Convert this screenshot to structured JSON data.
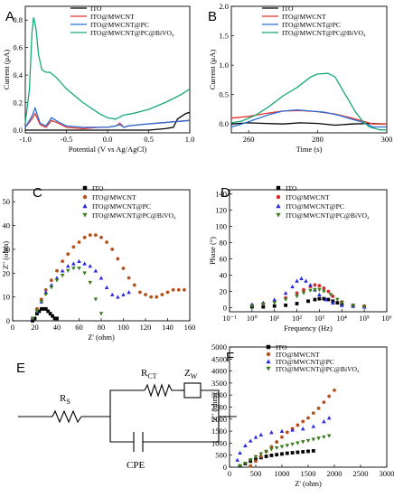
{
  "colors": {
    "ito": "#000000",
    "mwcnt": "#e8332b",
    "pc": "#2a6fd6",
    "bivo4": "#18a878",
    "nyq_ito": "#000000",
    "nyq_mwcnt": "#b5511c",
    "nyq_pc": "#2b2be0",
    "nyq_bivo4": "#3c7d1e"
  },
  "chart_data": [
    {
      "panel": "A",
      "type": "line",
      "xlabel": "Potential (V vs Ag/AgCl)",
      "ylabel": "Current (μA)",
      "xlim": [
        -1.0,
        1.0
      ],
      "ylim": [
        -0.02,
        0.9
      ],
      "xticks": [
        "-1.0",
        "-0.5",
        "0.0",
        "0.5",
        "1.0"
      ],
      "yticks": [
        "0.0",
        "0.2",
        "0.4",
        "0.6",
        "0.8"
      ],
      "series": [
        {
          "name": "ITO",
          "x": [
            -1.0,
            -0.9,
            -0.7,
            -0.5,
            -0.3,
            -0.1,
            0.1,
            0.3,
            0.5,
            0.7,
            0.8,
            0.85,
            0.9,
            0.95,
            1.0
          ],
          "y": [
            0.0,
            0.0,
            0.0,
            0.0,
            0.0,
            0.0,
            0.0,
            0.0,
            0.0,
            0.01,
            0.02,
            0.08,
            0.1,
            0.12,
            0.13
          ]
        },
        {
          "name": "ITO@MWCNT",
          "x": [
            -1.0,
            -0.92,
            -0.88,
            -0.82,
            -0.75,
            -0.68,
            -0.6,
            -0.5,
            -0.3,
            -0.1,
            0.0,
            0.1,
            0.15,
            0.2,
            0.25,
            0.4,
            0.6,
            0.8,
            1.0
          ],
          "y": [
            0.02,
            0.08,
            0.12,
            0.04,
            0.02,
            0.07,
            0.05,
            0.02,
            0.01,
            0.02,
            0.02,
            0.03,
            0.05,
            0.02,
            0.03,
            0.04,
            0.05,
            0.06,
            0.07
          ]
        },
        {
          "name": "ITO@MWCNT@PC",
          "x": [
            -1.0,
            -0.92,
            -0.88,
            -0.82,
            -0.75,
            -0.68,
            -0.6,
            -0.5,
            -0.3,
            -0.1,
            0.0,
            0.1,
            0.15,
            0.2,
            0.25,
            0.4,
            0.6,
            0.8,
            1.0
          ],
          "y": [
            0.02,
            0.1,
            0.16,
            0.05,
            0.03,
            0.09,
            0.06,
            0.03,
            0.02,
            0.02,
            0.02,
            0.03,
            0.04,
            0.02,
            0.03,
            0.04,
            0.05,
            0.06,
            0.07
          ]
        },
        {
          "name": "ITO@MWCNT@PC@BiVO₄",
          "x": [
            -1.0,
            -0.95,
            -0.92,
            -0.9,
            -0.87,
            -0.84,
            -0.8,
            -0.75,
            -0.7,
            -0.62,
            -0.5,
            -0.3,
            -0.1,
            0.0,
            0.1,
            0.2,
            0.3,
            0.5,
            0.7,
            0.9,
            1.0
          ],
          "y": [
            0.05,
            0.3,
            0.7,
            0.82,
            0.74,
            0.55,
            0.44,
            0.42,
            0.42,
            0.38,
            0.3,
            0.2,
            0.12,
            0.09,
            0.08,
            0.11,
            0.12,
            0.15,
            0.2,
            0.26,
            0.3
          ]
        }
      ]
    },
    {
      "panel": "B",
      "type": "line",
      "xlabel": "Time (s)",
      "ylabel": "Current (μA)",
      "xlim": [
        255,
        300
      ],
      "ylim": [
        -0.15,
        2.0
      ],
      "xticks": [
        "260",
        "280",
        "300"
      ],
      "yticks": [
        "0.0",
        "0.5",
        "1.0",
        "1.5",
        "2.0"
      ],
      "series": [
        {
          "name": "ITO",
          "x": [
            255,
            260,
            265,
            270,
            275,
            280,
            285,
            290,
            295,
            300
          ],
          "y": [
            0.0,
            0.02,
            0.01,
            0.0,
            0.02,
            0.01,
            -0.02,
            0.0,
            0.01,
            0.0
          ]
        },
        {
          "name": "ITO@MWCNT",
          "x": [
            255,
            260,
            265,
            270,
            275,
            280,
            285,
            290,
            293,
            296,
            300
          ],
          "y": [
            0.1,
            0.13,
            0.18,
            0.22,
            0.23,
            0.21,
            0.17,
            0.1,
            0.05,
            0.0,
            0.0
          ]
        },
        {
          "name": "ITO@MWCNT@PC",
          "x": [
            255,
            258,
            262,
            266,
            270,
            274,
            278,
            282,
            286,
            290,
            293,
            296,
            300
          ],
          "y": [
            -0.05,
            0.0,
            0.08,
            0.16,
            0.22,
            0.24,
            0.22,
            0.2,
            0.15,
            0.08,
            0.03,
            -0.05,
            -0.05
          ]
        },
        {
          "name": "ITO@MWCNT@PC@BiVO₄",
          "x": [
            255,
            258,
            262,
            266,
            270,
            274,
            278,
            280,
            283,
            285,
            287,
            289,
            291,
            293,
            295,
            298,
            300
          ],
          "y": [
            0.02,
            0.05,
            0.15,
            0.3,
            0.48,
            0.62,
            0.8,
            0.85,
            0.86,
            0.8,
            0.6,
            0.4,
            0.2,
            0.05,
            -0.05,
            -0.1,
            -0.1
          ]
        }
      ]
    },
    {
      "panel": "C",
      "type": "scatter",
      "xlabel": "Z' (ohm)",
      "ylabel": "Z'' (ohm)",
      "xlim": [
        0,
        160
      ],
      "ylim": [
        0,
        55
      ],
      "xticks": [
        "0",
        "20",
        "40",
        "60",
        "80",
        "100",
        "120",
        "140",
        "160"
      ],
      "yticks": [
        "0",
        "10",
        "20",
        "30",
        "40",
        "50"
      ],
      "series": [
        {
          "name": "ITO",
          "x": [
            18,
            20,
            22,
            24,
            26,
            28,
            30,
            32,
            34,
            36,
            38,
            40
          ],
          "y": [
            0,
            1,
            3,
            4,
            5,
            5,
            5,
            4,
            3,
            2,
            1,
            1
          ]
        },
        {
          "name": "ITO@MWCNT",
          "x": [
            18,
            22,
            26,
            30,
            35,
            40,
            45,
            50,
            55,
            60,
            65,
            70,
            75,
            80,
            85,
            90,
            95,
            100,
            105,
            110,
            115,
            120,
            125,
            130,
            135,
            140,
            145,
            150,
            155
          ],
          "y": [
            1,
            5,
            9,
            13,
            17,
            21,
            25,
            28,
            31,
            33,
            35,
            36,
            36,
            35,
            33,
            30,
            26,
            22,
            18,
            15,
            12,
            11,
            10,
            10,
            11,
            12,
            13,
            13,
            13
          ]
        },
        {
          "name": "ITO@MWCNT@PC",
          "x": [
            18,
            22,
            26,
            30,
            35,
            40,
            45,
            50,
            55,
            60,
            65,
            70,
            75,
            80,
            85,
            90,
            95,
            100,
            105
          ],
          "y": [
            1,
            4,
            8,
            12,
            15,
            18,
            21,
            23,
            24,
            25,
            24,
            23,
            21,
            18,
            14,
            11,
            10,
            11,
            12
          ]
        },
        {
          "name": "ITO@MWCNT@PC@BiVO₄",
          "x": [
            18,
            22,
            26,
            30,
            35,
            40,
            45,
            50,
            55,
            60,
            65,
            70,
            75,
            80
          ],
          "y": [
            1,
            4,
            8,
            11,
            14,
            17,
            19,
            21,
            22,
            22,
            20,
            16,
            9,
            3
          ]
        }
      ]
    },
    {
      "panel": "D",
      "type": "scatter",
      "xlabel": "Frequency (Hz)",
      "ylabel": "Phase (°)",
      "xlim_log": [
        -1,
        6
      ],
      "ylim": [
        -5,
        145
      ],
      "xticks": [
        "10⁻¹",
        "10⁰",
        "10¹",
        "10²",
        "10³",
        "10⁴",
        "10⁵",
        "10⁶"
      ],
      "yticks": [
        "0",
        "20",
        "40",
        "60",
        "80",
        "100",
        "120",
        "140"
      ],
      "series": [
        {
          "name": "ITO",
          "x_log": [
            0.0,
            0.5,
            1.0,
            1.5,
            2.0,
            2.5,
            2.8,
            3.0,
            3.2,
            3.4,
            3.6,
            3.8,
            4.0,
            4.5,
            5.0
          ],
          "y": [
            1,
            1,
            2,
            3,
            5,
            8,
            10,
            11,
            11,
            10,
            8,
            6,
            4,
            2,
            1
          ]
        },
        {
          "name": "ITO@MWCNT",
          "x_log": [
            0.0,
            0.5,
            1.0,
            1.5,
            2.0,
            2.3,
            2.6,
            2.8,
            3.0,
            3.2,
            3.4,
            3.6,
            4.0,
            4.5,
            5.0
          ],
          "y": [
            3,
            5,
            8,
            12,
            18,
            22,
            26,
            28,
            27,
            24,
            20,
            14,
            7,
            3,
            2
          ]
        },
        {
          "name": "ITO@MWCNT@PC",
          "x_log": [
            0.0,
            0.5,
            1.0,
            1.5,
            1.8,
            2.0,
            2.2,
            2.4,
            2.6,
            2.8,
            3.0,
            3.3,
            3.6,
            4.0,
            4.5,
            5.0
          ],
          "y": [
            4,
            6,
            10,
            18,
            26,
            33,
            36,
            33,
            28,
            22,
            16,
            10,
            6,
            3,
            2,
            1
          ]
        },
        {
          "name": "ITO@MWCNT@PC@BiVO₄",
          "x_log": [
            0.0,
            0.5,
            1.0,
            1.5,
            2.0,
            2.3,
            2.6,
            2.8,
            3.0,
            3.2,
            3.5,
            3.8,
            4.0,
            4.5,
            5.0
          ],
          "y": [
            2,
            4,
            6,
            10,
            14,
            18,
            21,
            22,
            22,
            20,
            16,
            10,
            6,
            3,
            1
          ]
        }
      ]
    },
    {
      "panel": "F",
      "type": "scatter",
      "xlabel": "Z' (ohm)",
      "ylabel": "Z'' (ohm)",
      "xlim": [
        0,
        3000
      ],
      "ylim": [
        0,
        5000
      ],
      "xticks": [
        "0",
        "500",
        "1000",
        "1500",
        "2000",
        "2500",
        "3000"
      ],
      "yticks": [
        "0",
        "500",
        "1000",
        "1500",
        "2000",
        "2500",
        "3000",
        "3500",
        "4000",
        "4500",
        "5000"
      ],
      "series": [
        {
          "name": "ITO",
          "x": [
            200,
            300,
            400,
            500,
            600,
            700,
            800,
            900,
            1000,
            1100,
            1200,
            1300,
            1400,
            1500,
            1600
          ],
          "y": [
            50,
            150,
            250,
            330,
            400,
            450,
            490,
            520,
            550,
            580,
            600,
            620,
            640,
            660,
            680
          ]
        },
        {
          "name": "ITO@MWCNT",
          "x": [
            400,
            500,
            600,
            700,
            800,
            900,
            1000,
            1100,
            1200,
            1300,
            1400,
            1500,
            1600,
            1700,
            1800,
            1900,
            2000
          ],
          "y": [
            50,
            250,
            450,
            650,
            850,
            1050,
            1250,
            1450,
            1600,
            1750,
            1900,
            2050,
            2250,
            2450,
            2700,
            2950,
            3200
          ]
        },
        {
          "name": "ITO@MWCNT@PC",
          "x": [
            150,
            200,
            300,
            400,
            500,
            600,
            800,
            1000,
            1200,
            1400,
            1600,
            1800,
            1900
          ],
          "y": [
            300,
            600,
            900,
            1100,
            1250,
            1350,
            1450,
            1500,
            1550,
            1600,
            1700,
            1900,
            2050
          ]
        },
        {
          "name": "ITO@MWCNT@PC@BiVO₄",
          "x": [
            200,
            300,
            400,
            500,
            600,
            700,
            800,
            900,
            1000,
            1100,
            1200,
            1300,
            1400,
            1500,
            1600,
            1700,
            1800,
            1900
          ],
          "y": [
            50,
            150,
            300,
            430,
            550,
            650,
            740,
            800,
            850,
            900,
            950,
            1000,
            1050,
            1100,
            1150,
            1200,
            1250,
            1300
          ]
        }
      ]
    }
  ],
  "circuit": {
    "panel": "E",
    "rs": "R",
    "rs_sub": "S",
    "rct": "R",
    "rct_sub": "CT",
    "zw": "Z",
    "zw_sub": "W",
    "cpe": "CPE"
  }
}
